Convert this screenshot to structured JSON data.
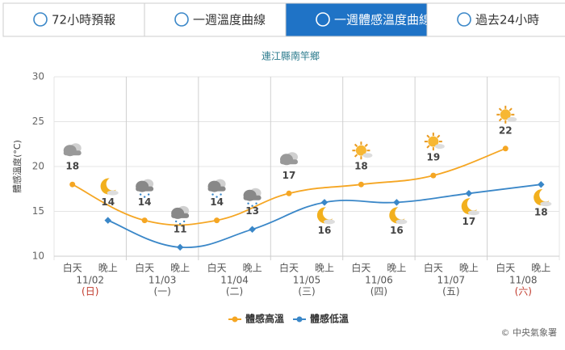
{
  "tabs": [
    {
      "label": "72小時預報"
    },
    {
      "label": "一週溫度曲線"
    },
    {
      "label": "一週體感溫度曲線"
    },
    {
      "label": "過去24小時"
    }
  ],
  "active_tab": 2,
  "chart_data": {
    "type": "line",
    "title": "連江縣南竿鄉",
    "y_label": "體感溫度(°C)",
    "periods": [
      "白天",
      "晚上"
    ],
    "categories": [
      "11/02",
      "11/03",
      "11/04",
      "11/05",
      "11/06",
      "11/07",
      "11/08"
    ],
    "weekdays": [
      "(日)",
      "(一)",
      "(二)",
      "(三)",
      "(四)",
      "(五)",
      "(六)"
    ],
    "weekday_colors": [
      "#c0392b",
      "#555555",
      "#555555",
      "#555555",
      "#555555",
      "#555555",
      "#c0392b"
    ],
    "series": [
      {
        "name": "體感高溫",
        "color": "#f5a623",
        "values": [
          18,
          14,
          14,
          17,
          18,
          19,
          22
        ]
      },
      {
        "name": "體感低溫",
        "color": "#3a87c8",
        "values": [
          14,
          11,
          13,
          16,
          16,
          17,
          18
        ]
      }
    ],
    "ylim": [
      10,
      30
    ],
    "yticks": [
      10,
      15,
      20,
      25,
      30
    ],
    "grid": true,
    "legend": "bottom",
    "credit": "© 中央氣象署"
  }
}
